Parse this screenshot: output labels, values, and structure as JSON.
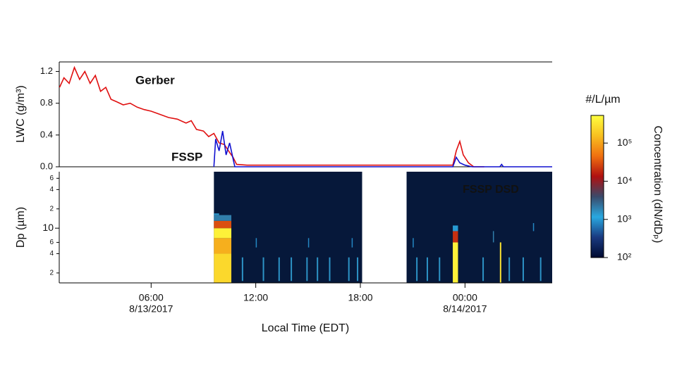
{
  "chart_data": [
    {
      "type": "line",
      "y_label": "LWC (g/m³)",
      "xlim": [
        0.73,
        29.0
      ],
      "ylim": [
        0,
        1.32
      ],
      "yticks": [
        {
          "value": 0,
          "label": "0.0"
        },
        0.4,
        0.8,
        1.2
      ],
      "series": [
        {
          "name": "Gerber",
          "color": "#e01010",
          "x": [
            0.75,
            1.0,
            1.3,
            1.6,
            1.9,
            2.2,
            2.5,
            2.8,
            3.1,
            3.4,
            3.7,
            4.0,
            4.4,
            4.8,
            5.2,
            5.6,
            6.0,
            6.5,
            7.0,
            7.5,
            8.0,
            8.3,
            8.6,
            9.0,
            9.3,
            9.6,
            9.9,
            10.2,
            10.5,
            10.7,
            10.9,
            11.5,
            14,
            17,
            20,
            22,
            23.3,
            23.5,
            23.7,
            23.9,
            24.2,
            24.5,
            25.1
          ],
          "values": [
            1.0,
            1.12,
            1.05,
            1.25,
            1.1,
            1.2,
            1.05,
            1.15,
            0.95,
            1.0,
            0.85,
            0.82,
            0.78,
            0.8,
            0.75,
            0.72,
            0.7,
            0.66,
            0.62,
            0.6,
            0.55,
            0.58,
            0.47,
            0.45,
            0.38,
            0.42,
            0.3,
            0.28,
            0.18,
            0.12,
            0.03,
            0.02,
            0.02,
            0.02,
            0.02,
            0.02,
            0.02,
            0.2,
            0.32,
            0.15,
            0.05,
            0.0,
            0.0
          ]
        },
        {
          "name": "FSSP",
          "color": "#1010d0",
          "x": [
            9.6,
            9.7,
            9.9,
            10.1,
            10.3,
            10.5,
            10.7,
            10.8,
            11.5,
            17,
            23.3,
            23.5,
            23.7,
            24.0,
            24.4,
            26,
            26.1,
            26.2,
            29
          ],
          "values": [
            0.0,
            0.35,
            0.2,
            0.45,
            0.15,
            0.3,
            0.1,
            0.0,
            0.0,
            0.0,
            0.0,
            0.12,
            0.05,
            0.02,
            0.0,
            0.0,
            0.03,
            0.0,
            0.0
          ]
        }
      ]
    },
    {
      "type": "heatmap",
      "title": "FSSP DSD",
      "x_label": "Local Time (EDT)",
      "y_label": "Dp (µm)",
      "xlim": [
        0.73,
        29.0
      ],
      "xticks": [
        {
          "value": 6,
          "label": "06:00"
        },
        {
          "value": 12,
          "label": "12:00"
        },
        {
          "value": 18,
          "label": "18:00"
        },
        {
          "value": 24,
          "label": "00:00"
        }
      ],
      "date_labels": [
        {
          "value": 6,
          "label": "8/13/2017"
        },
        {
          "value": 24,
          "label": "8/14/2017"
        }
      ],
      "ylim": [
        1.4,
        76
      ],
      "log_y": true,
      "yticks": [
        2,
        4,
        6,
        10,
        {
          "value": 20,
          "label": "2"
        },
        {
          "value": 40,
          "label": "4"
        },
        {
          "value": 60,
          "label": "6"
        }
      ],
      "coverage": [
        [
          9.6,
          18.1
        ],
        [
          20.65,
          29.0
        ]
      ],
      "background": "#06183a",
      "cells": [
        [
          9.6,
          10.6,
          1.4,
          4,
          250000
        ],
        [
          9.6,
          10.6,
          4,
          7,
          120000
        ],
        [
          9.6,
          10.6,
          7,
          10,
          400000
        ],
        [
          9.6,
          10.6,
          10,
          13,
          30000
        ],
        [
          9.6,
          10.6,
          13,
          16,
          2000
        ],
        [
          9.6,
          9.9,
          16,
          17,
          1500
        ],
        [
          11.2,
          11.28,
          1.5,
          3.5,
          1500
        ],
        [
          12.4,
          12.48,
          1.5,
          3.5,
          1500
        ],
        [
          13.3,
          13.38,
          1.5,
          3.5,
          1500
        ],
        [
          14.0,
          14.08,
          1.5,
          3.5,
          1500
        ],
        [
          14.9,
          14.98,
          1.5,
          3.5,
          1500
        ],
        [
          15.5,
          15.58,
          1.5,
          3.5,
          1500
        ],
        [
          16.2,
          16.28,
          1.5,
          3.5,
          1500
        ],
        [
          17.3,
          17.38,
          1.5,
          3.5,
          1500
        ],
        [
          17.8,
          17.88,
          1.5,
          3.5,
          1500
        ],
        [
          12.0,
          12.06,
          5,
          7,
          800
        ],
        [
          15.0,
          15.06,
          5,
          7,
          800
        ],
        [
          17.5,
          17.56,
          5,
          7,
          800
        ],
        [
          23.3,
          23.6,
          1.4,
          6,
          400000
        ],
        [
          23.3,
          23.6,
          6,
          9,
          20000
        ],
        [
          23.3,
          23.6,
          9,
          11,
          1000
        ],
        [
          26.0,
          26.08,
          1.4,
          6,
          300000
        ],
        [
          21.2,
          21.28,
          1.5,
          3.5,
          1500
        ],
        [
          21.8,
          21.88,
          1.5,
          3.5,
          1500
        ],
        [
          22.5,
          22.58,
          1.5,
          3.5,
          1500
        ],
        [
          25.0,
          25.08,
          1.5,
          3.5,
          1500
        ],
        [
          26.5,
          26.58,
          1.5,
          3.5,
          1500
        ],
        [
          27.3,
          27.38,
          1.5,
          3.5,
          1500
        ],
        [
          28.3,
          28.38,
          1.5,
          3.5,
          1500
        ],
        [
          21.0,
          21.06,
          5,
          7,
          800
        ],
        [
          25.6,
          25.66,
          6,
          9,
          2000
        ],
        [
          27.9,
          27.96,
          9,
          12,
          800
        ]
      ],
      "colorbar_title": "#/L/µm",
      "colorbar_label": "Concentration (dN/dDₚ)",
      "clim": [
        100,
        530000
      ],
      "cticks": [
        {
          "value": 100,
          "label": "10²"
        },
        {
          "value": 1000,
          "label": "10³"
        },
        {
          "value": 10000,
          "label": "10⁴"
        },
        {
          "value": 100000,
          "label": "10⁵"
        }
      ],
      "colormap": [
        "#000a30",
        "#1a3a80",
        "#29a8e0",
        "#3a4a6a",
        "#b01010",
        "#f07010",
        "#f8c020",
        "#ffff40"
      ]
    }
  ]
}
